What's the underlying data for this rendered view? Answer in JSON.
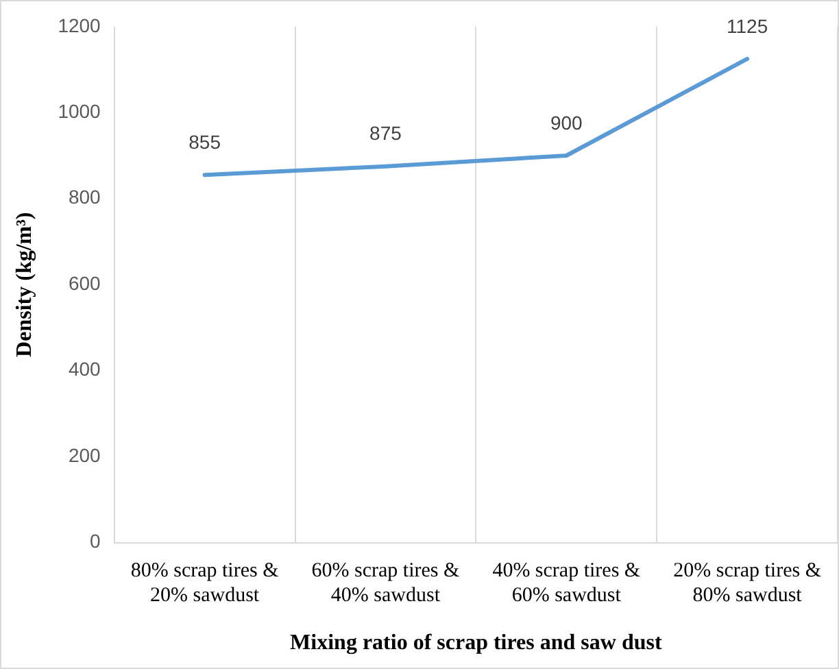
{
  "chart_data": {
    "type": "line",
    "xlabel": "Mixing ratio of scrap tires and saw dust",
    "ylabel": "Density (kg/m³)",
    "categories": [
      "80% scrap tires & 20% sawdust",
      "60% scrap tires & 40% sawdust",
      "40% scrap tires & 60% sawdust",
      "20% scrap tires & 80% sawdust"
    ],
    "series": [
      {
        "color": "#5b9bd5",
        "values": [
          855,
          875,
          900,
          1125
        ]
      }
    ],
    "ylim": [
      0,
      1200
    ],
    "yticks": [
      0,
      200,
      400,
      600,
      800,
      1000,
      1200
    ],
    "grid": "x",
    "legend": false,
    "marker": "none",
    "line_style": "solid",
    "data_labels": true
  }
}
